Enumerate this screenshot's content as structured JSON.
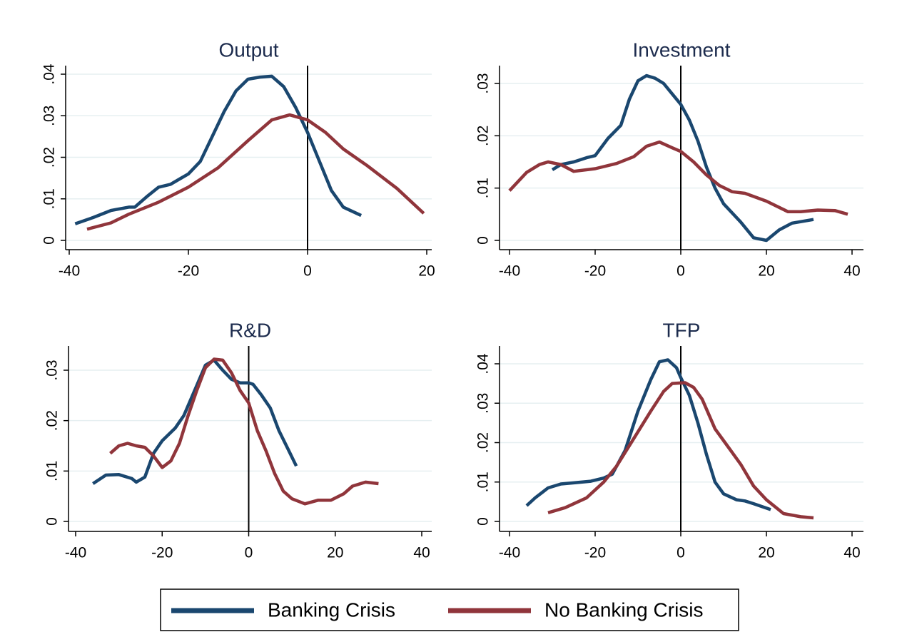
{
  "chart_data": [
    {
      "type": "line",
      "title": "Output",
      "xlim": [
        -40,
        20
      ],
      "xticks": [
        -40,
        -20,
        0,
        20
      ],
      "ylim": [
        0,
        0.04
      ],
      "yticks": [
        0,
        {
          "value": 0.01,
          "label": ".01"
        },
        {
          "value": 0.02,
          "label": ".02"
        },
        {
          "value": 0.03,
          "label": ".03"
        },
        {
          "value": 0.04,
          "label": ".04"
        }
      ],
      "grid": true,
      "vline": 0,
      "series": [
        {
          "name": "Banking Crisis",
          "color": "#1a476f",
          "x": [
            -39,
            -36,
            -33,
            -30,
            -29,
            -27,
            -25,
            -23,
            -20,
            -18,
            -16,
            -14,
            -12,
            -10,
            -8,
            -6,
            -4,
            -2,
            0,
            2,
            4,
            6,
            9
          ],
          "values": [
            0.004,
            0.0055,
            0.0072,
            0.008,
            0.008,
            0.0105,
            0.0128,
            0.0135,
            0.016,
            0.019,
            0.025,
            0.031,
            0.036,
            0.0388,
            0.0393,
            0.0395,
            0.037,
            0.032,
            0.026,
            0.019,
            0.012,
            0.008,
            0.006
          ]
        },
        {
          "name": "No Banking Crisis",
          "color": "#90353b",
          "x": [
            -37,
            -33,
            -30,
            -25,
            -20,
            -15,
            -10,
            -6,
            -3,
            0,
            3,
            6,
            10,
            15,
            19.5
          ],
          "values": [
            0.0027,
            0.0042,
            0.0063,
            0.0092,
            0.0128,
            0.0175,
            0.024,
            0.029,
            0.0302,
            0.029,
            0.026,
            0.022,
            0.018,
            0.0125,
            0.0065
          ]
        }
      ]
    },
    {
      "type": "line",
      "title": "Investment",
      "xlim": [
        -40,
        40
      ],
      "xticks": [
        -40,
        -20,
        0,
        20,
        40
      ],
      "ylim": [
        0,
        0.03
      ],
      "yticks": [
        0,
        {
          "value": 0.01,
          "label": ".01"
        },
        {
          "value": 0.02,
          "label": ".02"
        },
        {
          "value": 0.03,
          "label": ".03"
        }
      ],
      "grid": true,
      "vline": 0,
      "series": [
        {
          "color": "#1a476f",
          "x": [
            -30,
            -28,
            -25,
            -22,
            -20,
            -17,
            -14,
            -12,
            -10,
            -8,
            -6,
            -4,
            -2,
            0,
            2,
            4,
            6,
            8,
            10,
            14,
            17,
            20,
            23,
            26,
            31
          ],
          "values": [
            0.0135,
            0.0145,
            0.015,
            0.0158,
            0.0162,
            0.0195,
            0.022,
            0.027,
            0.0305,
            0.0315,
            0.031,
            0.03,
            0.028,
            0.026,
            0.023,
            0.019,
            0.014,
            0.01,
            0.007,
            0.0035,
            0.0005,
            0,
            0.002,
            0.0033,
            0.004
          ]
        },
        {
          "color": "#90353b",
          "x": [
            -40,
            -36,
            -33,
            -31,
            -28,
            -25,
            -20,
            -15,
            -11,
            -8,
            -5,
            -2,
            0,
            3,
            6,
            9,
            12,
            15,
            20,
            25,
            28,
            32,
            36,
            39
          ],
          "values": [
            0.0095,
            0.013,
            0.0145,
            0.015,
            0.0145,
            0.0132,
            0.0137,
            0.0147,
            0.016,
            0.018,
            0.0188,
            0.0177,
            0.017,
            0.015,
            0.0125,
            0.0105,
            0.0093,
            0.009,
            0.0075,
            0.0055,
            0.0055,
            0.0058,
            0.0057,
            0.005
          ]
        }
      ]
    },
    {
      "type": "line",
      "title": "R&D",
      "xlim": [
        -40,
        40
      ],
      "xticks": [
        -40,
        -20,
        0,
        20,
        40
      ],
      "ylim": [
        0,
        0.03
      ],
      "yticks": [
        0,
        {
          "value": 0.01,
          "label": ".01"
        },
        {
          "value": 0.02,
          "label": ".02"
        },
        {
          "value": 0.03,
          "label": ".03"
        }
      ],
      "grid": true,
      "vline": 0,
      "series": [
        {
          "color": "#1a476f",
          "x": [
            -36,
            -33,
            -30,
            -27,
            -26,
            -24,
            -22,
            -20,
            -17,
            -15,
            -12,
            -10,
            -8,
            -6,
            -4,
            -2,
            0,
            1,
            3,
            5,
            7,
            9,
            11
          ],
          "values": [
            0.0075,
            0.0092,
            0.0093,
            0.0085,
            0.0078,
            0.0088,
            0.0135,
            0.016,
            0.0185,
            0.021,
            0.027,
            0.031,
            0.032,
            0.03,
            0.0282,
            0.0275,
            0.0275,
            0.0272,
            0.025,
            0.0225,
            0.018,
            0.0145,
            0.011
          ]
        },
        {
          "color": "#90353b",
          "x": [
            -32,
            -30,
            -28,
            -26,
            -24,
            -22,
            -20,
            -18,
            -16,
            -14,
            -12,
            -10,
            -8,
            -6,
            -4,
            -2,
            0,
            2,
            4,
            6,
            8,
            10,
            13,
            16,
            19,
            22,
            24,
            27,
            30
          ],
          "values": [
            0.0135,
            0.015,
            0.0155,
            0.015,
            0.0147,
            0.013,
            0.0107,
            0.012,
            0.0155,
            0.021,
            0.026,
            0.0305,
            0.0322,
            0.032,
            0.0295,
            0.026,
            0.0235,
            0.018,
            0.014,
            0.0095,
            0.006,
            0.0045,
            0.0035,
            0.0042,
            0.0042,
            0.0055,
            0.007,
            0.0078,
            0.0075
          ]
        }
      ]
    },
    {
      "type": "line",
      "title": "TFP",
      "xlim": [
        -40,
        40
      ],
      "xticks": [
        -40,
        -20,
        0,
        20,
        40
      ],
      "ylim": [
        0,
        0.04
      ],
      "yticks": [
        0,
        {
          "value": 0.01,
          "label": ".01"
        },
        {
          "value": 0.02,
          "label": ".02"
        },
        {
          "value": 0.03,
          "label": ".03"
        },
        {
          "value": 0.04,
          "label": ".04"
        }
      ],
      "grid": true,
      "vline": 0,
      "series": [
        {
          "color": "#1a476f",
          "x": [
            -36,
            -34,
            -31,
            -28,
            -25,
            -21,
            -18,
            -16,
            -13,
            -10,
            -7,
            -5,
            -3,
            -1,
            0,
            2,
            4,
            6,
            8,
            10,
            13,
            15,
            17,
            21
          ],
          "values": [
            0.004,
            0.006,
            0.0085,
            0.0095,
            0.0098,
            0.0102,
            0.011,
            0.012,
            0.018,
            0.028,
            0.036,
            0.0405,
            0.041,
            0.039,
            0.0365,
            0.032,
            0.025,
            0.017,
            0.01,
            0.007,
            0.0055,
            0.0052,
            0.0045,
            0.003
          ]
        },
        {
          "color": "#90353b",
          "x": [
            -31,
            -27,
            -22,
            -18,
            -15,
            -11,
            -7,
            -4,
            -2,
            1,
            3,
            5,
            8,
            11,
            14,
            17,
            20,
            24,
            28,
            31
          ],
          "values": [
            0.0022,
            0.0035,
            0.006,
            0.01,
            0.014,
            0.021,
            0.028,
            0.033,
            0.035,
            0.0352,
            0.034,
            0.031,
            0.0235,
            0.019,
            0.0145,
            0.009,
            0.0055,
            0.002,
            0.0012,
            0.0009
          ]
        }
      ]
    }
  ]
}
